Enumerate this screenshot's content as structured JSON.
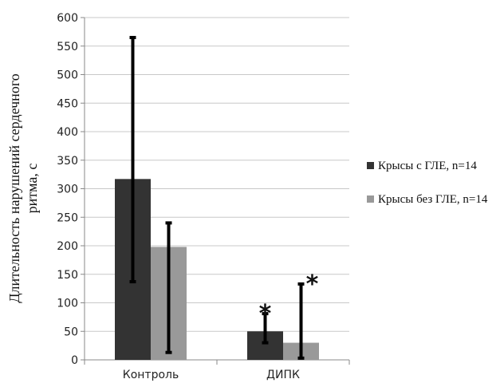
{
  "chart_data": {
    "type": "bar",
    "categories": [
      "Контроль",
      "ДИПК"
    ],
    "ylabel_lines": [
      "Длительность   нарушений  сердечного",
      "ритма, с"
    ],
    "ylim": [
      0,
      600
    ],
    "yticks": [
      0,
      50,
      100,
      150,
      200,
      250,
      300,
      350,
      400,
      450,
      500,
      550,
      600
    ],
    "grid": true,
    "legend_position": "right",
    "series": [
      {
        "name": "Крысы с ГЛЕ, n=14",
        "color": "#333333",
        "values": [
          317,
          50
        ],
        "error_low": [
          137,
          30
        ],
        "error_high": [
          565,
          81
        ]
      },
      {
        "name": "Крысы без ГЛЕ, n=14",
        "color": "#999999",
        "values": [
          198,
          30
        ],
        "error_low": [
          13,
          3
        ],
        "error_high": [
          240,
          133
        ]
      }
    ],
    "annotations": [
      {
        "text": "*",
        "category": 1,
        "series": 0
      },
      {
        "text": "*",
        "category": 1,
        "series": 1
      }
    ]
  }
}
